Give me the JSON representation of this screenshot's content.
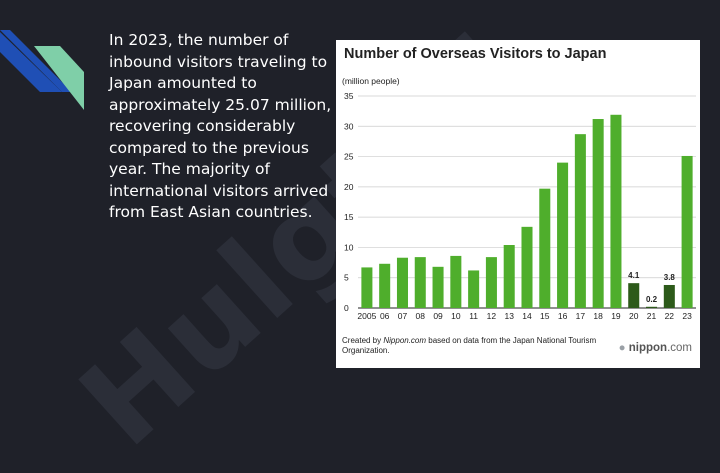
{
  "slide": {
    "body_text": "In 2023, the number of inbound visitors traveling to Japan amounted to approximately 25.07 million, recovering considerably compared to the previous year. The majority of international visitors arrived from East Asian countries.",
    "watermark": "Hulgt24",
    "colors": {
      "background": "#1f2129",
      "accent_blue": "#1f4fb5",
      "accent_teal": "#7fcfa8"
    }
  },
  "chart_data": {
    "type": "bar",
    "title": "Number of Overseas Visitors to Japan",
    "ylabel": "(million people)",
    "categories": [
      "2005",
      "06",
      "07",
      "08",
      "09",
      "10",
      "11",
      "12",
      "13",
      "14",
      "15",
      "16",
      "17",
      "18",
      "19",
      "20",
      "21",
      "22",
      "23"
    ],
    "values": [
      6.7,
      7.3,
      8.3,
      8.4,
      6.8,
      8.6,
      6.2,
      8.4,
      10.4,
      13.4,
      19.7,
      24.0,
      28.7,
      31.2,
      31.9,
      4.1,
      0.2,
      3.8,
      25.1
    ],
    "data_labels": {
      "15": "4.1",
      "16": "0.2",
      "17": "3.8"
    },
    "ylim": [
      0,
      35
    ],
    "yticks": [
      0,
      5,
      10,
      15,
      20,
      25,
      30,
      35
    ],
    "colors": {
      "normal": "#4fae2c",
      "covid": "#2d5a1a"
    },
    "credit_prefix": "Created by ",
    "credit_source": "Nippon.com",
    "credit_suffix": " based on data from the Japan National Tourism Organization.",
    "brand_dot": "●",
    "brand_name": "nippon",
    "brand_tld": ".com"
  }
}
